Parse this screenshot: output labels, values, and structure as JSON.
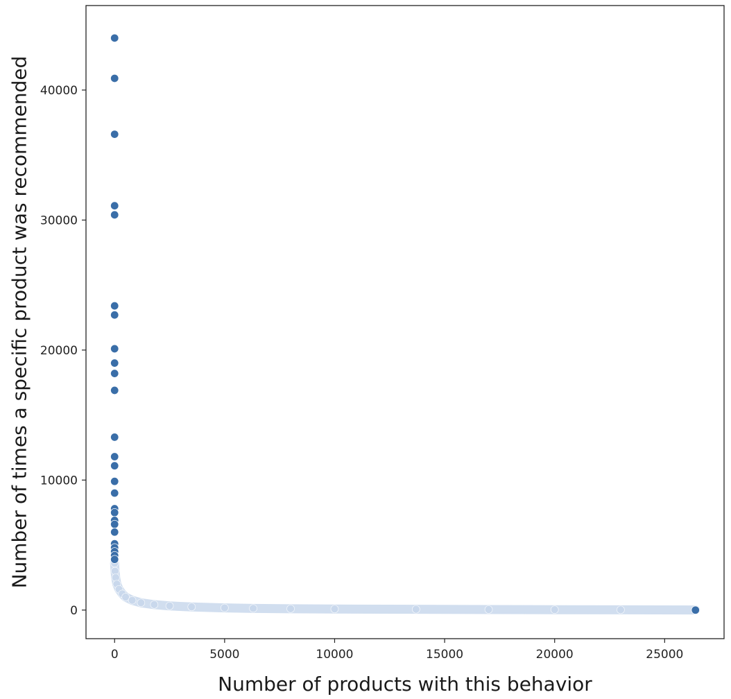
{
  "chart_data": {
    "type": "scatter",
    "title": "",
    "xlabel": "Number of products with this behavior",
    "ylabel": "Number of times a specific product was recommended",
    "xlim": [
      -1300,
      27700
    ],
    "ylim": [
      -2200,
      46500
    ],
    "xticks": [
      0,
      5000,
      10000,
      15000,
      20000,
      25000
    ],
    "yticks": [
      0,
      10000,
      20000,
      30000,
      40000
    ],
    "grid": false,
    "legend": "none",
    "point_color": "#3a6ea8",
    "tail_color": "#c9d8ec",
    "outlier_points": [
      {
        "x": 0,
        "y": 44000
      },
      {
        "x": 0,
        "y": 40900
      },
      {
        "x": 0,
        "y": 36600
      },
      {
        "x": 0,
        "y": 31100
      },
      {
        "x": 0,
        "y": 30400
      },
      {
        "x": 0,
        "y": 23400
      },
      {
        "x": 0,
        "y": 22700
      },
      {
        "x": 0,
        "y": 20100
      },
      {
        "x": 0,
        "y": 19000
      },
      {
        "x": 0,
        "y": 18200
      },
      {
        "x": 0,
        "y": 16900
      },
      {
        "x": 0,
        "y": 13300
      },
      {
        "x": 0,
        "y": 11800
      },
      {
        "x": 0,
        "y": 11100
      },
      {
        "x": 0,
        "y": 9900
      },
      {
        "x": 0,
        "y": 9000
      },
      {
        "x": 0,
        "y": 7800
      },
      {
        "x": 0,
        "y": 7500
      },
      {
        "x": 0,
        "y": 6900
      },
      {
        "x": 0,
        "y": 6600
      },
      {
        "x": 0,
        "y": 6000
      },
      {
        "x": 0,
        "y": 5100
      },
      {
        "x": 0,
        "y": 4800
      },
      {
        "x": 0,
        "y": 4500
      },
      {
        "x": 0,
        "y": 4200
      },
      {
        "x": 0,
        "y": 3900
      },
      {
        "x": 26400,
        "y": 0
      }
    ],
    "tail_curve": [
      {
        "x": 0,
        "y": 3600
      },
      {
        "x": 20,
        "y": 3000
      },
      {
        "x": 50,
        "y": 2500
      },
      {
        "x": 100,
        "y": 2000
      },
      {
        "x": 200,
        "y": 1600
      },
      {
        "x": 350,
        "y": 1250
      },
      {
        "x": 500,
        "y": 1000
      },
      {
        "x": 800,
        "y": 750
      },
      {
        "x": 1200,
        "y": 560
      },
      {
        "x": 1800,
        "y": 420
      },
      {
        "x": 2500,
        "y": 320
      },
      {
        "x": 3500,
        "y": 240
      },
      {
        "x": 5000,
        "y": 170
      },
      {
        "x": 6300,
        "y": 130
      },
      {
        "x": 8000,
        "y": 100
      },
      {
        "x": 10000,
        "y": 80
      },
      {
        "x": 13700,
        "y": 60
      },
      {
        "x": 17000,
        "y": 40
      },
      {
        "x": 20000,
        "y": 30
      },
      {
        "x": 23000,
        "y": 20
      },
      {
        "x": 26400,
        "y": 10
      }
    ]
  }
}
